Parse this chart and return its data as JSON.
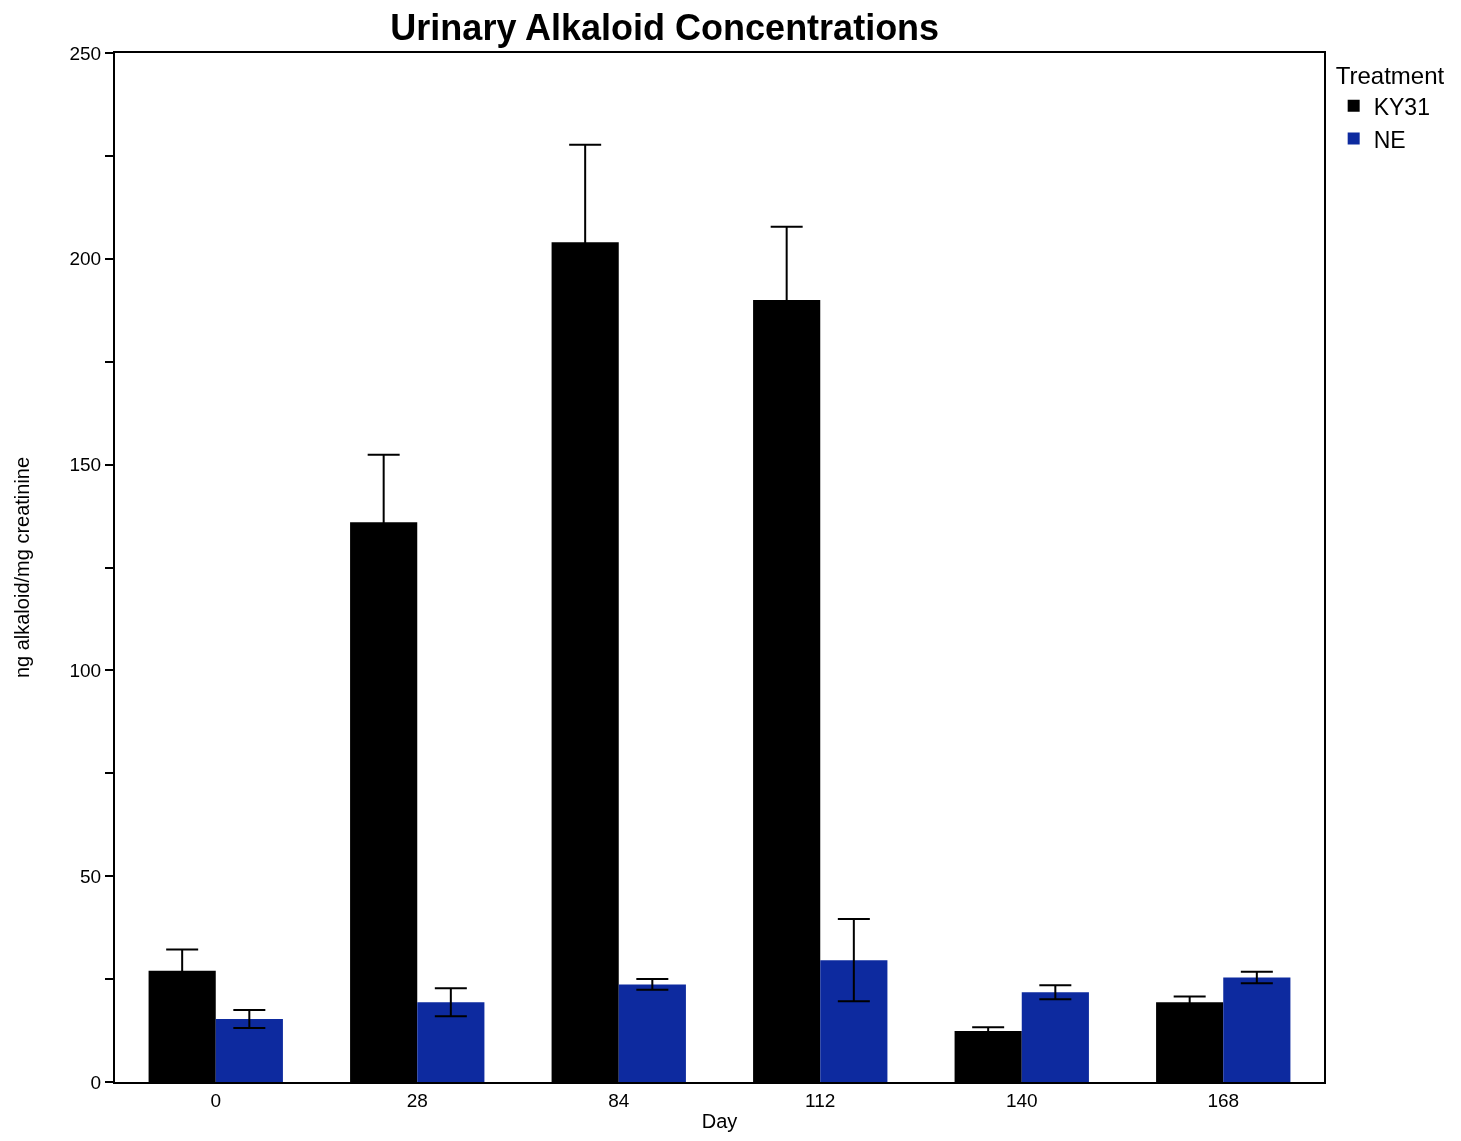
{
  "chart_data": {
    "type": "bar",
    "title": "Urinary Alkaloid Concentrations",
    "xlabel": "Day",
    "ylabel": "ng alkaloid/mg creatinine",
    "legend_title": "Treatment",
    "categories": [
      "0",
      "28",
      "84",
      "112",
      "140",
      "168"
    ],
    "series": [
      {
        "name": "KY31",
        "color": "#000000",
        "values": [
          27,
          136,
          204,
          190,
          12.4,
          19.4
        ],
        "errors": [
          5.2,
          16.4,
          23.7,
          17.8,
          0.9,
          1.4
        ]
      },
      {
        "name": "NE",
        "color": "#0d2a9f",
        "values": [
          15.3,
          19.4,
          23.7,
          29.6,
          21.8,
          25.4
        ],
        "errors": [
          2.2,
          3.4,
          1.3,
          10,
          1.7,
          1.4
        ]
      }
    ],
    "ylim": [
      0,
      250
    ],
    "yticks": [
      0,
      {
        "value": 25,
        "label": null
      },
      50,
      {
        "value": 75,
        "label": null
      },
      100,
      {
        "value": 125,
        "label": null
      },
      150,
      {
        "value": 175,
        "label": null
      },
      200,
      {
        "value": 225,
        "label": null
      },
      250
    ],
    "grid": false,
    "legend": "top right"
  }
}
